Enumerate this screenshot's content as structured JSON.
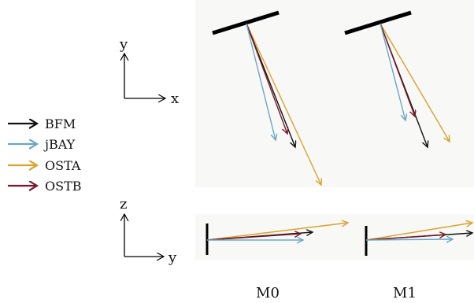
{
  "axes_xy": {
    "vertical": "y",
    "horizontal": "x"
  },
  "axes_zy": {
    "vertical": "z",
    "horizontal": "y"
  },
  "legend": [
    {
      "label": "BFM",
      "color": "#111111"
    },
    {
      "label": "jBAY",
      "color": "#6aa7c4"
    },
    {
      "label": "OSTA",
      "color": "#d9a22e"
    },
    {
      "label": "OSTB",
      "color": "#7a1a2a"
    }
  ],
  "panels": [
    {
      "label": "M0"
    },
    {
      "label": "M1"
    }
  ],
  "colors": {
    "panel_background": "#f8f8f6",
    "plate": "#000000",
    "axis": "#000000"
  }
}
